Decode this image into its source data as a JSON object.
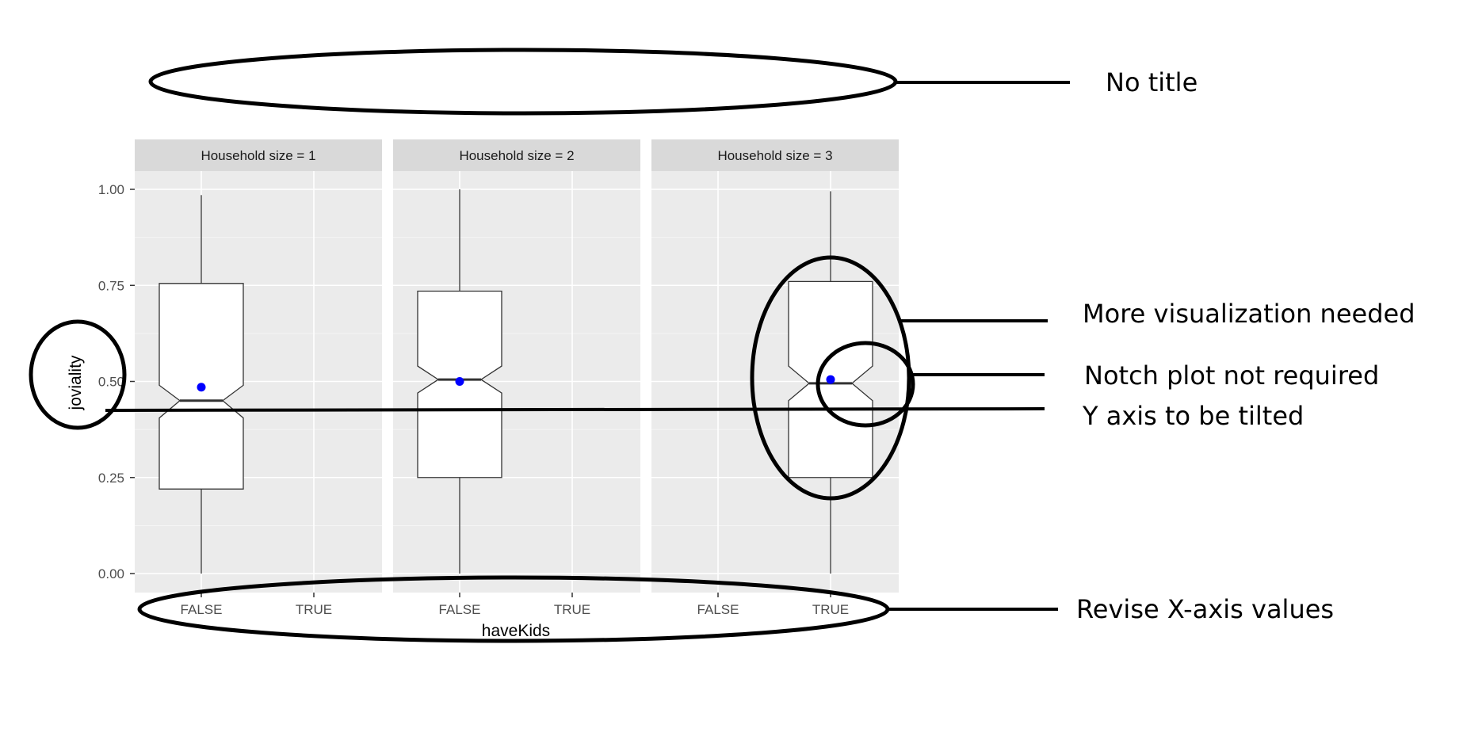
{
  "chart_data": {
    "type": "boxplot",
    "title": "",
    "xlabel": "haveKids",
    "ylabel": "joviality",
    "ylim": [
      0,
      1
    ],
    "yticks": [
      "0.00",
      "0.25",
      "0.50",
      "0.75",
      "1.00"
    ],
    "ytick_values": [
      0,
      0.25,
      0.5,
      0.75,
      1.0
    ],
    "categories": [
      "FALSE",
      "TRUE"
    ],
    "notched": true,
    "grid": true,
    "colors": {
      "panel_bg": "#ebebeb",
      "strip_bg": "#d9d9d9",
      "grid_major": "#ffffff",
      "box_fill": "#ffffff",
      "box_line": "#333333",
      "mean_point": "#0000ff",
      "annotation": "#000000"
    },
    "panels": [
      {
        "label": "Household size = 1",
        "boxes": [
          {
            "category": "FALSE",
            "min": 0.0,
            "q1": 0.22,
            "median": 0.45,
            "q3": 0.755,
            "max": 0.985,
            "notch_low": 0.405,
            "notch_high": 0.49,
            "mean": 0.485
          }
        ]
      },
      {
        "label": "Household size = 2",
        "boxes": [
          {
            "category": "FALSE",
            "min": 0.0,
            "q1": 0.25,
            "median": 0.505,
            "q3": 0.735,
            "max": 1.0,
            "notch_low": 0.47,
            "notch_high": 0.54,
            "mean": 0.5
          }
        ]
      },
      {
        "label": "Household size = 3",
        "boxes": [
          {
            "category": "TRUE",
            "min": 0.0,
            "q1": 0.25,
            "median": 0.495,
            "q3": 0.76,
            "max": 0.995,
            "notch_low": 0.45,
            "notch_high": 0.54,
            "mean": 0.505
          }
        ]
      }
    ]
  },
  "annotations": {
    "no_title": "No title",
    "more_visualization": "More visualization needed",
    "notch_not_required": "Notch plot not required",
    "y_axis_tilted": "Y axis to be tilted",
    "revise_x_axis": "Revise X-axis values"
  }
}
